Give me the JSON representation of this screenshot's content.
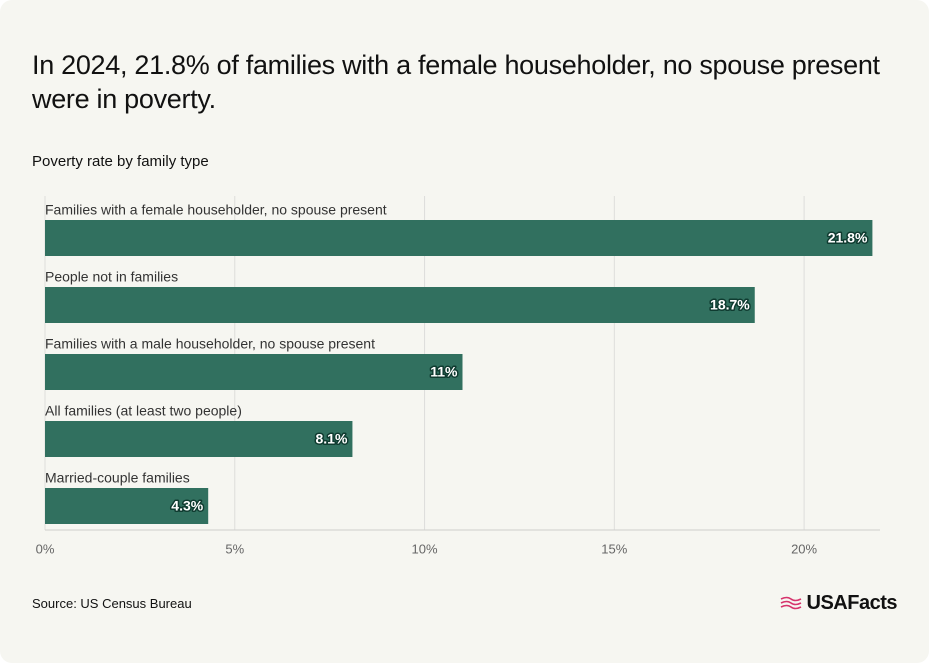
{
  "chart_data": {
    "type": "bar",
    "orientation": "horizontal",
    "title": "In 2024, 21.8% of families with a female householder, no spouse present were in poverty.",
    "subtitle": "Poverty rate by family type",
    "categories": [
      "Families with a female householder, no spouse present",
      "People not in families",
      "Families with a male householder, no spouse present",
      "All families (at least two people)",
      "Married-couple families"
    ],
    "values": [
      21.8,
      18.7,
      11,
      8.1,
      4.3
    ],
    "value_labels": [
      "21.8%",
      "18.7%",
      "11%",
      "8.1%",
      "4.3%"
    ],
    "color": "#31705f",
    "xlim": [
      0,
      22
    ],
    "xticks": [
      {
        "value": 0,
        "label": "0%"
      },
      {
        "value": 5,
        "label": "5%"
      },
      {
        "value": 10,
        "label": "10%"
      },
      {
        "value": 15,
        "label": "15%"
      },
      {
        "value": 20,
        "label": "20%"
      }
    ],
    "grid": true,
    "source": "Source: US Census Bureau"
  },
  "brand": "USAFacts"
}
